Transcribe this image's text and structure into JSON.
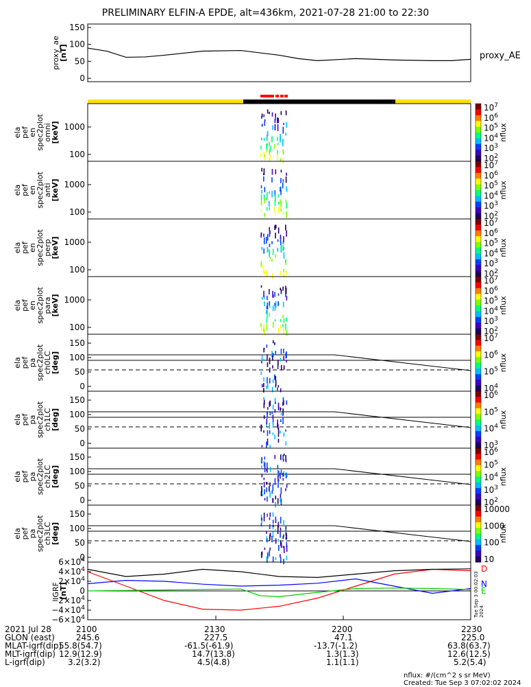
{
  "title": "PRELIMINARY ELFIN-A EPDE, alt=436km, 2021-07-28 21:00 to 22:30",
  "colors": {
    "day_bar": "#ffe000",
    "night_bar": "#000000",
    "science_zone": "#ff0000",
    "grf_x": "#ff0000",
    "grf_y": "#0000ff",
    "grf_z": "#00cc00",
    "grf_total": "#000000"
  },
  "chart_data": [
    {
      "type": "line",
      "name": "proxy_ae",
      "ylabel": "proxy_ae\n[nT]",
      "yticks": [
        "150",
        "100",
        "50",
        "0"
      ],
      "ylim": [
        -10,
        160
      ],
      "series": [
        {
          "name": "proxy_AE",
          "x": [
            0,
            0.05,
            0.1,
            0.15,
            0.2,
            0.3,
            0.4,
            0.5,
            0.55,
            0.6,
            0.7,
            0.8,
            0.9,
            0.95,
            1.0
          ],
          "values": [
            89,
            80,
            62,
            63,
            68,
            80,
            82,
            68,
            58,
            52,
            58,
            54,
            52,
            52,
            56
          ]
        }
      ]
    },
    {
      "type": "heatmap",
      "name": "omni",
      "ylabel": "ela\npef\nen\nspec2plot\nomni\n[keV]",
      "yticks": [
        "1000",
        "100"
      ],
      "cbar_ticks": [
        "10^7",
        "10^6",
        "10^5",
        "10^4",
        "10^3",
        "10^2"
      ],
      "cbar_label": "nflux"
    },
    {
      "type": "heatmap",
      "name": "anti",
      "ylabel": "ela\npef\nen\nspec2plot\nanti\n[keV]",
      "yticks": [
        "1000",
        "100"
      ],
      "cbar_ticks": [
        "10^7",
        "10^6",
        "10^5",
        "10^4",
        "10^3",
        "10^2"
      ],
      "cbar_label": "nflux"
    },
    {
      "type": "heatmap",
      "name": "perp",
      "ylabel": "ela\npef\nen\nspec2plot\nperp\n[keV]",
      "yticks": [
        "1000",
        "100"
      ],
      "cbar_ticks": [
        "10^7",
        "10^6",
        "10^5",
        "10^4",
        "10^3",
        "10^2"
      ],
      "cbar_label": "nflux"
    },
    {
      "type": "heatmap",
      "name": "para",
      "ylabel": "ela\npef\nen\nspec2plot\npara\n[keV]",
      "yticks": [
        "1000",
        "100"
      ],
      "cbar_ticks": [
        "10^7",
        "10^6",
        "10^5",
        "10^4",
        "10^3",
        "10^2"
      ],
      "cbar_label": "nflux"
    },
    {
      "type": "heatmap",
      "name": "ch0LC",
      "ylabel": "ela\npef\npa\nspec2plot\nch0LC\n[deg]",
      "yticks": [
        "150",
        "100",
        "50",
        "0"
      ],
      "cbar_ticks": [
        "10^7",
        "10^6",
        "10^5",
        "10^4"
      ],
      "cbar_label": "nflux"
    },
    {
      "type": "heatmap",
      "name": "ch1LC",
      "ylabel": "ela\npef\npa\nspec2plot\nch1LC\n[deg]",
      "yticks": [
        "150",
        "100",
        "50",
        "0"
      ],
      "cbar_ticks": [
        "10^6",
        "10^5",
        "10^4",
        "10^3"
      ],
      "cbar_label": "nflux"
    },
    {
      "type": "heatmap",
      "name": "ch2LC",
      "ylabel": "ela\npef\npa\nspec2plot\nch2LC\n[deg]",
      "yticks": [
        "150",
        "100",
        "50",
        "0"
      ],
      "cbar_ticks": [
        "10^6",
        "10^5",
        "10^4",
        "10^3",
        "10^2"
      ],
      "cbar_label": "nflux"
    },
    {
      "type": "heatmap",
      "name": "ch3LC",
      "ylabel": "ela\npef\npa\nspec2plot\nch3LC\n[deg]",
      "yticks": [
        "150",
        "100",
        "50",
        "0"
      ],
      "cbar_ticks": [
        "10000",
        "1000",
        "100",
        "10"
      ],
      "cbar_label": "nflux"
    },
    {
      "type": "line",
      "name": "GRF",
      "ylabel": "IGRF\n[nT]",
      "yticks": [
        "6×10^4",
        "4×10^4",
        "2×10^4",
        "0",
        "−2×10^4",
        "−4×10^4",
        "−6×10^4"
      ],
      "ylim": [
        -60000,
        60000
      ],
      "legend": [
        "D",
        "N",
        "E"
      ],
      "series": [
        {
          "name": "D",
          "x": [
            0,
            0.1,
            0.2,
            0.3,
            0.4,
            0.5,
            0.6,
            0.7,
            0.8,
            0.9,
            1.0
          ],
          "values": [
            40000,
            10000,
            -20000,
            -38000,
            -40000,
            -32000,
            -15000,
            10000,
            35000,
            45000,
            42000
          ]
        },
        {
          "name": "N",
          "x": [
            0,
            0.1,
            0.2,
            0.3,
            0.4,
            0.5,
            0.6,
            0.7,
            0.8,
            0.9,
            1.0
          ],
          "values": [
            15000,
            22000,
            20000,
            14000,
            10000,
            12000,
            16000,
            25000,
            10000,
            -5000,
            5000
          ]
        },
        {
          "name": "E",
          "x": [
            0,
            0.1,
            0.2,
            0.3,
            0.4,
            0.45,
            0.5,
            0.6,
            0.7,
            0.8,
            0.9,
            1.0
          ],
          "values": [
            0,
            1000,
            2000,
            3000,
            4000,
            -10000,
            -12000,
            -3000,
            5000,
            6000,
            5000,
            3000
          ]
        },
        {
          "name": "total",
          "x": [
            0,
            0.1,
            0.2,
            0.3,
            0.4,
            0.5,
            0.6,
            0.7,
            0.8,
            0.9,
            1.0
          ],
          "values": [
            45000,
            30000,
            35000,
            45000,
            40000,
            30000,
            28000,
            35000,
            42000,
            45000,
            46000
          ]
        }
      ]
    }
  ],
  "side_labels": {
    "proxy_ae": "proxy_AE"
  },
  "xaxis": {
    "row_labels": [
      "2021 Jul 28",
      "GLON (east)",
      "MLAT-igrf(dip)",
      "MLT-igrf(dip)",
      "L-igrf(dip)"
    ],
    "columns": [
      {
        "time": "2100",
        "vals": [
          "245.6",
          "55.8(54.7)",
          "12.9(12.9)",
          "3.2(3.2)"
        ]
      },
      {
        "time": "2130",
        "vals": [
          "227.5",
          "-61.5(-61.9)",
          "14.7(13.8)",
          "4.5(4.8)"
        ]
      },
      {
        "time": "2200",
        "vals": [
          "47.1",
          "-13.7(-1.2)",
          "1.3(1.3)",
          "1.1(1.1)"
        ]
      },
      {
        "time": "2230",
        "vals": [
          "225.0",
          "63.8(63.7)",
          "12.6(12.5)",
          "5.2(5.4)"
        ]
      }
    ]
  },
  "footer": {
    "nflux": "nflux: #/(cm^2 s sr MeV)",
    "created": "Created: Tue Sep  3 07:02:02 2024",
    "side_stamp": "Tue Sep  3 00:02:03 2024"
  }
}
